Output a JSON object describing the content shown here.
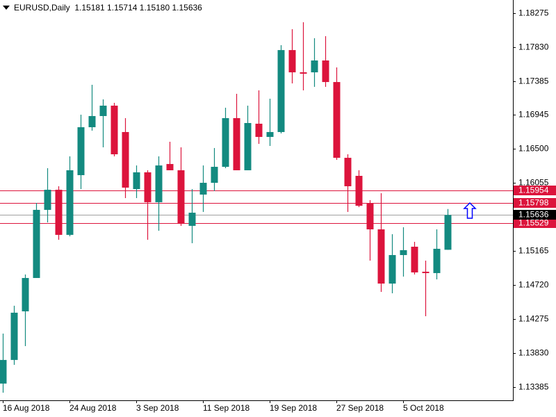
{
  "chart_data": {
    "type": "candlestick",
    "header": "EURUSD,Daily  1.15181 1.15714 1.15180 1.15636",
    "categories": [
      "16 Aug 2018",
      null,
      null,
      null,
      null,
      null,
      "24 Aug 2018",
      null,
      null,
      null,
      null,
      null,
      "3 Sep 2018",
      null,
      null,
      null,
      null,
      null,
      "11 Sep 2018",
      null,
      null,
      null,
      null,
      null,
      "19 Sep 2018",
      null,
      null,
      null,
      null,
      null,
      "27 Sep 2018",
      null,
      null,
      null,
      null,
      null,
      "5 Oct 2018",
      null,
      null,
      null,
      null
    ],
    "open": [
      1.13431,
      1.1374,
      1.14376,
      1.14812,
      1.15703,
      1.15966,
      1.15376,
      1.16157,
      1.16784,
      1.1693,
      1.17066,
      1.16721,
      1.15975,
      1.16194,
      1.15803,
      1.16303,
      1.16221,
      1.15494,
      1.15903,
      1.16057,
      1.16266,
      1.16903,
      1.16221,
      1.1683,
      1.16657,
      1.16721,
      1.17793,
      1.17502,
      1.17502,
      1.17657,
      1.17375,
      1.16384,
      1.16148,
      1.15785,
      1.15448,
      1.14739,
      1.15112,
      1.15221,
      1.14894,
      1.14876,
      1.15181
    ],
    "high": [
      1.14085,
      1.14449,
      1.14858,
      1.15794,
      1.16248,
      1.16012,
      1.16403,
      1.16948,
      1.17339,
      1.17148,
      1.17103,
      1.16903,
      1.16284,
      1.16221,
      1.16403,
      1.16594,
      1.16521,
      1.15975,
      1.16284,
      1.16512,
      1.17039,
      1.17221,
      1.17066,
      1.17266,
      1.17157,
      1.17857,
      1.18066,
      1.18157,
      1.17948,
      1.17975,
      1.17566,
      1.1643,
      1.16221,
      1.1583,
      1.15921,
      1.15385,
      1.15476,
      1.15285,
      1.15039,
      1.15448,
      1.15714
    ],
    "low": [
      1.13312,
      1.13676,
      1.13921,
      1.14812,
      1.15539,
      1.15312,
      1.15357,
      1.15975,
      1.16739,
      1.16521,
      1.16403,
      1.15857,
      1.15857,
      1.15312,
      1.1543,
      1.16221,
      1.15494,
      1.15267,
      1.15676,
      1.15948,
      1.16248,
      1.16221,
      1.16221,
      1.16566,
      1.16539,
      1.16703,
      1.17357,
      1.17266,
      1.17312,
      1.17312,
      1.16357,
      1.15676,
      1.15739,
      1.15039,
      1.1463,
      1.14612,
      1.1483,
      1.14858,
      1.14312,
      1.14794,
      1.1518
    ],
    "close": [
      1.1374,
      1.14358,
      1.14812,
      1.15703,
      1.15966,
      1.15376,
      1.16221,
      1.16784,
      1.1693,
      1.17066,
      1.1643,
      1.15994,
      1.16194,
      1.15803,
      1.16284,
      1.16221,
      1.15521,
      1.15666,
      1.16057,
      1.16266,
      1.16903,
      1.16221,
      1.16839,
      1.16657,
      1.16721,
      1.17793,
      1.17502,
      1.17484,
      1.17657,
      1.17375,
      1.16384,
      1.16012,
      1.15757,
      1.15448,
      1.14739,
      1.15112,
      1.15176,
      1.14885,
      1.14876,
      1.15194,
      1.15636
    ],
    "up_color": "#138a80",
    "down_color": "#dc143c",
    "ylim": [
      1.13221,
      1.18448
    ],
    "yticks": [
      1.18275,
      {
        "value": 1.1783,
        "label": "1.17830"
      },
      1.17385,
      1.16945,
      {
        "value": 1.165,
        "label": "1.16500"
      },
      1.16055,
      1.15165,
      {
        "value": 1.1472,
        "label": "1.14720"
      },
      1.14275,
      {
        "value": 1.1383,
        "label": "1.13830"
      },
      1.13385
    ],
    "levels": [
      1.15954,
      1.15798,
      1.15529
    ],
    "level_color": "#dc143c",
    "price_color": "#000000"
  }
}
